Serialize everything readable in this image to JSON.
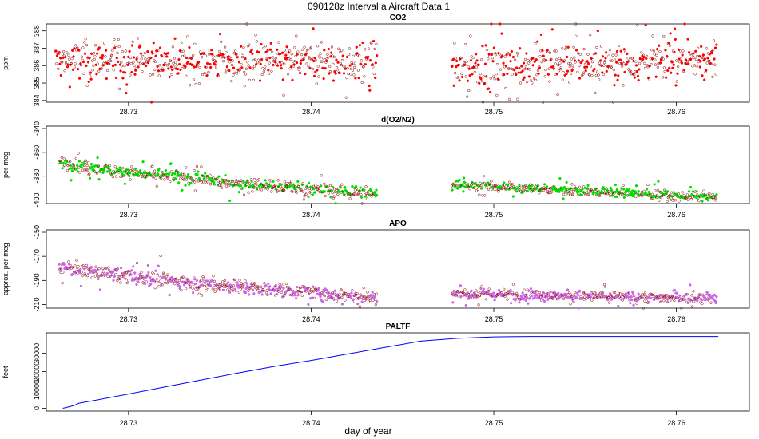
{
  "figure": {
    "title": "090128z   Interval a Aircraft Data 1",
    "xlabel": "day of year"
  },
  "chart_data": [
    {
      "type": "scatter",
      "title": "CO2",
      "ylabel": "ppm",
      "color": "#ff0000",
      "xlim": [
        28.7255,
        28.764
      ],
      "ylim": [
        383.9,
        388.4
      ],
      "xticks": [
        28.73,
        28.74,
        28.75,
        28.76
      ],
      "yticks": [
        384,
        385,
        386,
        387,
        388
      ],
      "segments": [
        {
          "x_start": 28.726,
          "x_end": 28.7436,
          "y_start": 386.3,
          "y_end": 386.2,
          "spread": 0.75
        },
        {
          "x_start": 28.7477,
          "x_end": 28.7622,
          "y_start": 385.9,
          "y_end": 386.4,
          "spread": 0.75
        }
      ]
    },
    {
      "type": "scatter",
      "title": "d(O2/N2)",
      "ylabel": "per meg",
      "color": "#00dd00",
      "xlim": [
        28.7255,
        28.764
      ],
      "ylim": [
        -403.0,
        -338.0
      ],
      "xticks": [
        28.73,
        28.74,
        28.75,
        28.76
      ],
      "yticks": [
        -340,
        -360,
        -380,
        -400
      ],
      "segments": [
        {
          "x_start": 28.7262,
          "x_end": 28.7436,
          "y_start": -368,
          "y_end": -395,
          "spread": 3.5
        },
        {
          "x_start": 28.7477,
          "x_end": 28.7622,
          "y_start": -387,
          "y_end": -398,
          "spread": 2.5
        }
      ]
    },
    {
      "type": "scatter",
      "title": "APO",
      "ylabel": "approx. per meg",
      "color": "#cc66ee",
      "xlim": [
        28.7255,
        28.764
      ],
      "ylim": [
        -213.0,
        -148.0
      ],
      "xticks": [
        28.73,
        28.74,
        28.75,
        28.76
      ],
      "yticks": [
        -150,
        -170,
        -190,
        -210
      ],
      "segments": [
        {
          "x_start": 28.7262,
          "x_end": 28.7436,
          "y_start": -178,
          "y_end": -204,
          "spread": 4.0
        },
        {
          "x_start": 28.7477,
          "x_end": 28.7622,
          "y_start": -201,
          "y_end": -205,
          "spread": 3.0
        }
      ]
    },
    {
      "type": "line",
      "title": "PALTF",
      "ylabel": "feet",
      "color": "#0000ff",
      "xlim": [
        28.7255,
        28.764
      ],
      "ylim": [
        -1500,
        41000
      ],
      "xticks": [
        28.73,
        28.74,
        28.75,
        28.76
      ],
      "yticks": [
        0,
        10000,
        20000,
        30000
      ],
      "x": [
        28.7264,
        28.7267,
        28.727,
        28.7273,
        28.728,
        28.73,
        28.732,
        28.734,
        28.736,
        28.738,
        28.74,
        28.742,
        28.744,
        28.746,
        28.748,
        28.75,
        28.752,
        28.754,
        28.756,
        28.758,
        28.76,
        28.7623
      ],
      "y": [
        0,
        700,
        1500,
        2800,
        4000,
        7800,
        11600,
        15400,
        19200,
        22800,
        26000,
        29500,
        33000,
        36500,
        38000,
        38800,
        39000,
        39000,
        39000,
        39000,
        39000,
        39000
      ]
    }
  ]
}
